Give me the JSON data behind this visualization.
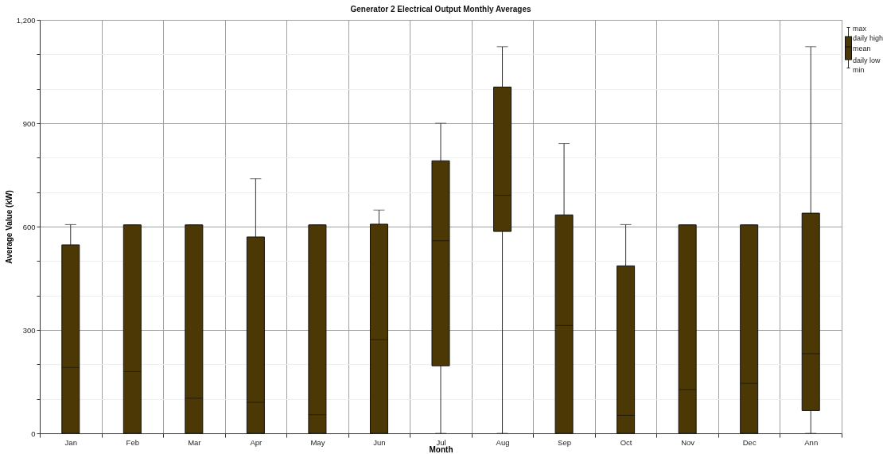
{
  "chart_data": {
    "type": "box",
    "title": "Generator 2 Electrical Output Monthly Averages",
    "xlabel": "Month",
    "ylabel": "Average Value (kW)",
    "categories": [
      "Jan",
      "Feb",
      "Mar",
      "Apr",
      "May",
      "Jun",
      "Jul",
      "Aug",
      "Sep",
      "Oct",
      "Nov",
      "Dec",
      "Ann"
    ],
    "series": [
      {
        "color": "#4b3804",
        "boxes": [
          {
            "low": 0,
            "q1": 0,
            "median": 191,
            "q3": 547,
            "high": 606
          },
          {
            "low": 0,
            "q1": 0,
            "median": 179,
            "q3": 605,
            "high": 605
          },
          {
            "low": 0,
            "q1": 0,
            "median": 102,
            "q3": 605,
            "high": 605
          },
          {
            "low": 0,
            "q1": 0,
            "median": 90,
            "q3": 570,
            "high": 739
          },
          {
            "low": 0,
            "q1": 0,
            "median": 54,
            "q3": 605,
            "high": 605
          },
          {
            "low": 0,
            "q1": 0,
            "median": 272,
            "q3": 607,
            "high": 648
          },
          {
            "low": 0,
            "q1": 196,
            "median": 559,
            "q3": 791,
            "high": 900
          },
          {
            "low": 0,
            "q1": 586,
            "median": 691,
            "q3": 1005,
            "high": 1122
          },
          {
            "low": 0,
            "q1": 0,
            "median": 313,
            "q3": 634,
            "high": 841
          },
          {
            "low": 0,
            "q1": 0,
            "median": 52,
            "q3": 486,
            "high": 606
          },
          {
            "low": 0,
            "q1": 0,
            "median": 127,
            "q3": 605,
            "high": 605
          },
          {
            "low": 0,
            "q1": 0,
            "median": 145,
            "q3": 605,
            "high": 605
          },
          {
            "low": 0,
            "q1": 66,
            "median": 231,
            "q3": 639,
            "high": 1122
          }
        ]
      }
    ],
    "ylim": [
      0,
      1200
    ],
    "yticks": [
      0,
      {
        "value": 100,
        "label": null
      },
      {
        "value": 200,
        "label": null
      },
      300,
      {
        "value": 400,
        "label": null
      },
      {
        "value": 500,
        "label": null
      },
      600,
      {
        "value": 700,
        "label": null
      },
      {
        "value": 800,
        "label": null
      },
      900,
      {
        "value": 1000,
        "label": null
      },
      {
        "value": 1100,
        "label": null
      },
      {
        "value": 1200,
        "label": "1,200"
      }
    ],
    "grid": true,
    "annotations": [
      "max",
      "daily high",
      "mean",
      "daily low",
      "min"
    ]
  }
}
